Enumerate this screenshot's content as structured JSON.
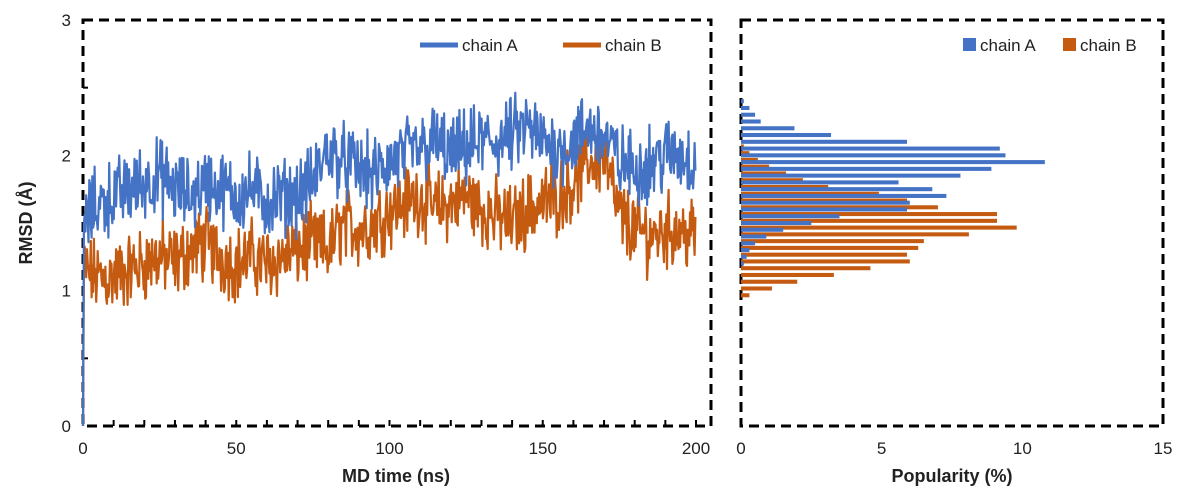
{
  "colors": {
    "chain_a": "#4472C4",
    "chain_b": "#C55A11",
    "frame": "#000000"
  },
  "chart_data": [
    {
      "type": "line",
      "title": "",
      "xlabel": "MD time (ns)",
      "ylabel": "RMSD (Å)",
      "xlim": [
        0,
        200
      ],
      "ylim": [
        0,
        3
      ],
      "xticks": [
        0,
        50,
        100,
        150,
        200
      ],
      "yticks": [
        0,
        1,
        2,
        3
      ],
      "legend": {
        "position": "top-right",
        "entries": [
          "chain A",
          "chain B"
        ]
      },
      "x": [
        0,
        5,
        10,
        15,
        20,
        25,
        30,
        35,
        40,
        45,
        50,
        55,
        60,
        65,
        70,
        75,
        80,
        85,
        90,
        95,
        100,
        105,
        110,
        115,
        120,
        125,
        130,
        135,
        140,
        145,
        150,
        155,
        160,
        165,
        170,
        175,
        180,
        185,
        190,
        195,
        200
      ],
      "series": [
        {
          "name": "chain A",
          "values": [
            1.5,
            1.65,
            1.7,
            1.75,
            1.8,
            1.85,
            1.75,
            1.7,
            1.8,
            1.75,
            1.7,
            1.75,
            1.65,
            1.7,
            1.7,
            1.8,
            2.05,
            1.95,
            1.9,
            1.85,
            1.95,
            2.0,
            2.05,
            2.1,
            2.0,
            2.05,
            2.1,
            2.1,
            2.15,
            2.2,
            2.1,
            2.05,
            2.1,
            2.2,
            2.15,
            1.95,
            1.9,
            1.95,
            2.0,
            2.0,
            1.95
          ]
        },
        {
          "name": "chain B",
          "values": [
            1.15,
            1.1,
            1.1,
            1.15,
            1.2,
            1.25,
            1.2,
            1.3,
            1.35,
            1.25,
            1.2,
            1.25,
            1.2,
            1.25,
            1.3,
            1.35,
            1.3,
            1.5,
            1.45,
            1.5,
            1.6,
            1.65,
            1.7,
            1.6,
            1.65,
            1.7,
            1.6,
            1.55,
            1.5,
            1.6,
            1.65,
            1.7,
            1.8,
            1.95,
            2.0,
            1.55,
            1.45,
            1.4,
            1.45,
            1.45,
            1.4
          ]
        }
      ]
    },
    {
      "type": "bar",
      "orientation": "horizontal",
      "title": "",
      "xlabel": "Popularity (%)",
      "ylabel": "RMSD (Å)",
      "xlim": [
        0,
        15
      ],
      "ylim": [
        0,
        3
      ],
      "xticks": [
        0,
        5,
        10,
        15
      ],
      "legend": {
        "position": "top-right",
        "entries": [
          "chain A",
          "chain B"
        ]
      },
      "bins": [
        0.9,
        0.95,
        1.0,
        1.05,
        1.1,
        1.15,
        1.2,
        1.25,
        1.3,
        1.35,
        1.4,
        1.45,
        1.5,
        1.55,
        1.6,
        1.65,
        1.7,
        1.75,
        1.8,
        1.85,
        1.9,
        1.95,
        2.0,
        2.05,
        2.1,
        2.15,
        2.2,
        2.25,
        2.3,
        2.35,
        2.4,
        2.45,
        2.5
      ],
      "series": [
        {
          "name": "chain A",
          "values": [
            0,
            0,
            0,
            0,
            0,
            0,
            0.1,
            0.2,
            0.3,
            0.5,
            0.9,
            1.5,
            2.5,
            3.5,
            5.9,
            6.0,
            7.3,
            6.8,
            5.6,
            7.8,
            8.9,
            10.8,
            9.4,
            9.2,
            5.9,
            3.2,
            1.9,
            0.7,
            0.5,
            0.3,
            0.1,
            0,
            0
          ]
        },
        {
          "name": "chain B",
          "values": [
            0,
            0.3,
            1.1,
            2.0,
            3.3,
            4.6,
            6.0,
            5.9,
            6.3,
            6.5,
            8.1,
            9.8,
            9.1,
            9.1,
            7.0,
            5.9,
            4.9,
            3.1,
            2.2,
            1.6,
            1.0,
            0.6,
            0.3,
            0.1,
            0,
            0,
            0,
            0,
            0,
            0,
            0,
            0,
            0
          ]
        }
      ]
    }
  ]
}
